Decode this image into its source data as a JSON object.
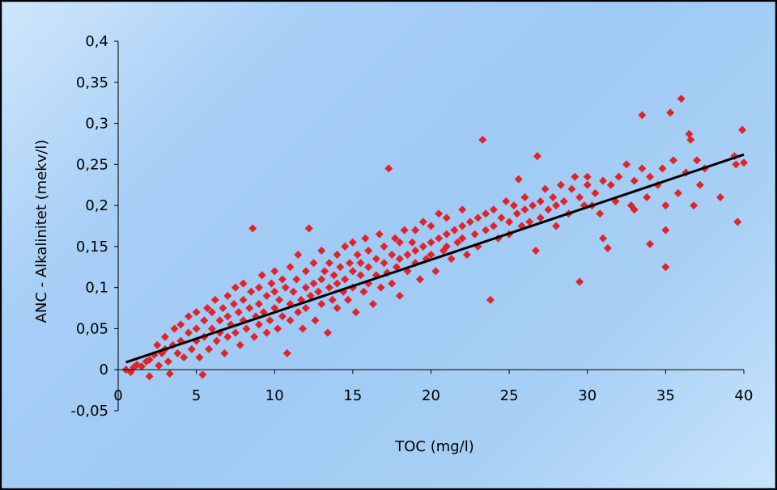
{
  "chart_data": {
    "type": "scatter",
    "title": "",
    "xlabel": "TOC (mg/l)",
    "ylabel": "ANC - Alkalinitet (mekv/l)",
    "xlim": [
      0,
      40
    ],
    "ylim": [
      -0.05,
      0.4
    ],
    "x_ticks": [
      0,
      5,
      10,
      15,
      20,
      25,
      30,
      35,
      40
    ],
    "x_tick_labels": [
      "0",
      "5",
      "10",
      "15",
      "20",
      "25",
      "30",
      "35",
      "40"
    ],
    "y_ticks": [
      -0.05,
      0,
      0.05,
      0.1,
      0.15,
      0.2,
      0.25,
      0.3,
      0.35,
      0.4
    ],
    "y_tick_labels": [
      "-0,05",
      "0",
      "0,05",
      "0,1",
      "0,15",
      "0,2",
      "0,25",
      "0,3",
      "0,35",
      "0,4"
    ],
    "grid": false,
    "legend": "none",
    "colors": {
      "points": "#e0242c",
      "trendline": "#000000",
      "axis": "#000000"
    },
    "series": [
      {
        "marker": "diamond",
        "points": [
          [
            0.5,
            0.0
          ],
          [
            0.8,
            -0.003
          ],
          [
            1.0,
            0.003
          ],
          [
            1.2,
            0.006
          ],
          [
            1.5,
            0.004
          ],
          [
            1.8,
            0.01
          ],
          [
            2.0,
            0.012
          ],
          [
            2.0,
            -0.008
          ],
          [
            2.3,
            0.018
          ],
          [
            2.5,
            0.03
          ],
          [
            2.6,
            0.005
          ],
          [
            2.8,
            0.02
          ],
          [
            3.0,
            0.025
          ],
          [
            3.0,
            0.04
          ],
          [
            3.2,
            0.01
          ],
          [
            3.3,
            -0.005
          ],
          [
            3.5,
            0.03
          ],
          [
            3.6,
            0.05
          ],
          [
            3.8,
            0.02
          ],
          [
            4.0,
            0.035
          ],
          [
            4.0,
            0.055
          ],
          [
            4.2,
            0.015
          ],
          [
            4.5,
            0.045
          ],
          [
            4.5,
            0.065
          ],
          [
            4.7,
            0.025
          ],
          [
            5.0,
            0.05
          ],
          [
            5.0,
            0.07
          ],
          [
            5.0,
            0.035
          ],
          [
            5.2,
            0.015
          ],
          [
            5.4,
            -0.006
          ],
          [
            5.5,
            0.06
          ],
          [
            5.5,
            0.04
          ],
          [
            5.7,
            0.075
          ],
          [
            5.8,
            0.025
          ],
          [
            6.0,
            0.05
          ],
          [
            6.0,
            0.07
          ],
          [
            6.2,
            0.085
          ],
          [
            6.3,
            0.035
          ],
          [
            6.5,
            0.06
          ],
          [
            6.5,
            0.045
          ],
          [
            6.7,
            0.075
          ],
          [
            6.8,
            0.02
          ],
          [
            7.0,
            0.065
          ],
          [
            7.0,
            0.09
          ],
          [
            7.0,
            0.04
          ],
          [
            7.2,
            0.055
          ],
          [
            7.4,
            0.08
          ],
          [
            7.5,
            0.1
          ],
          [
            7.5,
            0.045
          ],
          [
            7.7,
            0.07
          ],
          [
            7.8,
            0.03
          ],
          [
            8.0,
            0.06
          ],
          [
            8.0,
            0.085
          ],
          [
            8.0,
            0.105
          ],
          [
            8.2,
            0.05
          ],
          [
            8.4,
            0.075
          ],
          [
            8.5,
            0.095
          ],
          [
            8.6,
            0.172
          ],
          [
            8.7,
            0.04
          ],
          [
            8.8,
            0.065
          ],
          [
            9.0,
            0.08
          ],
          [
            9.0,
            0.1
          ],
          [
            9.0,
            0.055
          ],
          [
            9.2,
            0.115
          ],
          [
            9.3,
            0.07
          ],
          [
            9.5,
            0.09
          ],
          [
            9.5,
            0.045
          ],
          [
            9.7,
            0.06
          ],
          [
            9.8,
            0.105
          ],
          [
            10.0,
            0.075
          ],
          [
            10.0,
            0.095
          ],
          [
            10.0,
            0.12
          ],
          [
            10.2,
            0.05
          ],
          [
            10.3,
            0.085
          ],
          [
            10.5,
            0.065
          ],
          [
            10.5,
            0.11
          ],
          [
            10.7,
            0.1
          ],
          [
            10.8,
            0.02
          ],
          [
            11.0,
            0.08
          ],
          [
            11.0,
            0.125
          ],
          [
            11.0,
            0.06
          ],
          [
            11.2,
            0.095
          ],
          [
            11.4,
            0.11
          ],
          [
            11.5,
            0.07
          ],
          [
            11.5,
            0.14
          ],
          [
            11.7,
            0.085
          ],
          [
            11.8,
            0.05
          ],
          [
            12.0,
            0.1
          ],
          [
            12.0,
            0.12
          ],
          [
            12.0,
            0.075
          ],
          [
            12.2,
            0.172
          ],
          [
            12.3,
            0.09
          ],
          [
            12.5,
            0.105
          ],
          [
            12.5,
            0.13
          ],
          [
            12.6,
            0.06
          ],
          [
            12.8,
            0.095
          ],
          [
            13.0,
            0.11
          ],
          [
            13.0,
            0.08
          ],
          [
            13.0,
            0.145
          ],
          [
            13.2,
            0.12
          ],
          [
            13.4,
            0.045
          ],
          [
            13.5,
            0.1
          ],
          [
            13.5,
            0.13
          ],
          [
            13.7,
            0.085
          ],
          [
            13.8,
            0.115
          ],
          [
            14.0,
            0.105
          ],
          [
            14.0,
            0.14
          ],
          [
            14.0,
            0.075
          ],
          [
            14.2,
            0.125
          ],
          [
            14.4,
            0.095
          ],
          [
            14.5,
            0.15
          ],
          [
            14.5,
            0.11
          ],
          [
            14.7,
            0.085
          ],
          [
            14.8,
            0.13
          ],
          [
            15.0,
            0.12
          ],
          [
            15.0,
            0.1
          ],
          [
            15.0,
            0.155
          ],
          [
            15.2,
            0.07
          ],
          [
            15.3,
            0.14
          ],
          [
            15.5,
            0.115
          ],
          [
            15.5,
            0.13
          ],
          [
            15.7,
            0.095
          ],
          [
            15.8,
            0.16
          ],
          [
            16.0,
            0.125
          ],
          [
            16.0,
            0.105
          ],
          [
            16.0,
            0.145
          ],
          [
            16.3,
            0.08
          ],
          [
            16.5,
            0.135
          ],
          [
            16.5,
            0.115
          ],
          [
            16.7,
            0.165
          ],
          [
            16.8,
            0.1
          ],
          [
            17.0,
            0.13
          ],
          [
            17.0,
            0.15
          ],
          [
            17.2,
            0.118
          ],
          [
            17.3,
            0.245
          ],
          [
            17.5,
            0.14
          ],
          [
            17.5,
            0.105
          ],
          [
            17.7,
            0.16
          ],
          [
            17.8,
            0.125
          ],
          [
            18.0,
            0.135
          ],
          [
            18.0,
            0.155
          ],
          [
            18.0,
            0.09
          ],
          [
            18.3,
            0.17
          ],
          [
            18.5,
            0.14
          ],
          [
            18.5,
            0.12
          ],
          [
            18.8,
            0.155
          ],
          [
            19.0,
            0.145
          ],
          [
            19.0,
            0.13
          ],
          [
            19.0,
            0.17
          ],
          [
            19.3,
            0.11
          ],
          [
            19.5,
            0.15
          ],
          [
            19.5,
            0.18
          ],
          [
            19.7,
            0.135
          ],
          [
            20.0,
            0.155
          ],
          [
            20.0,
            0.14
          ],
          [
            20.0,
            0.175
          ],
          [
            20.3,
            0.12
          ],
          [
            20.5,
            0.16
          ],
          [
            20.5,
            0.19
          ],
          [
            20.8,
            0.145
          ],
          [
            21.0,
            0.165
          ],
          [
            21.0,
            0.15
          ],
          [
            21.0,
            0.185
          ],
          [
            21.3,
            0.135
          ],
          [
            21.5,
            0.17
          ],
          [
            21.7,
            0.155
          ],
          [
            22.0,
            0.175
          ],
          [
            22.0,
            0.16
          ],
          [
            22.0,
            0.195
          ],
          [
            22.3,
            0.14
          ],
          [
            22.5,
            0.18
          ],
          [
            22.8,
            0.165
          ],
          [
            23.0,
            0.185
          ],
          [
            23.0,
            0.15
          ],
          [
            23.3,
            0.28
          ],
          [
            23.5,
            0.17
          ],
          [
            23.5,
            0.19
          ],
          [
            23.8,
            0.085
          ],
          [
            24.0,
            0.175
          ],
          [
            24.0,
            0.195
          ],
          [
            24.3,
            0.16
          ],
          [
            24.5,
            0.185
          ],
          [
            24.8,
            0.205
          ],
          [
            25.0,
            0.18
          ],
          [
            25.0,
            0.165
          ],
          [
            25.3,
            0.2
          ],
          [
            25.5,
            0.19
          ],
          [
            25.6,
            0.232
          ],
          [
            25.8,
            0.175
          ],
          [
            26.0,
            0.195
          ],
          [
            26.0,
            0.21
          ],
          [
            26.3,
            0.18
          ],
          [
            26.5,
            0.2
          ],
          [
            26.7,
            0.145
          ],
          [
            26.8,
            0.26
          ],
          [
            27.0,
            0.205
          ],
          [
            27.0,
            0.185
          ],
          [
            27.3,
            0.22
          ],
          [
            27.5,
            0.195
          ],
          [
            27.8,
            0.21
          ],
          [
            28.0,
            0.2
          ],
          [
            28.0,
            0.175
          ],
          [
            28.3,
            0.225
          ],
          [
            28.5,
            0.205
          ],
          [
            28.8,
            0.19
          ],
          [
            29.0,
            0.22
          ],
          [
            29.2,
            0.235
          ],
          [
            29.5,
            0.107
          ],
          [
            29.5,
            0.21
          ],
          [
            29.8,
            0.2
          ],
          [
            30.0,
            0.225
          ],
          [
            30.0,
            0.235
          ],
          [
            30.3,
            0.2
          ],
          [
            30.5,
            0.215
          ],
          [
            30.8,
            0.19
          ],
          [
            31.0,
            0.23
          ],
          [
            31.0,
            0.16
          ],
          [
            31.3,
            0.148
          ],
          [
            31.5,
            0.225
          ],
          [
            31.8,
            0.205
          ],
          [
            32.0,
            0.235
          ],
          [
            32.5,
            0.25
          ],
          [
            32.8,
            0.2
          ],
          [
            33.0,
            0.23
          ],
          [
            33.0,
            0.195
          ],
          [
            33.5,
            0.31
          ],
          [
            33.5,
            0.245
          ],
          [
            33.8,
            0.21
          ],
          [
            34.0,
            0.153
          ],
          [
            34.0,
            0.235
          ],
          [
            34.5,
            0.225
          ],
          [
            34.8,
            0.245
          ],
          [
            35.0,
            0.17
          ],
          [
            35.0,
            0.125
          ],
          [
            35.0,
            0.2
          ],
          [
            35.3,
            0.313
          ],
          [
            35.5,
            0.255
          ],
          [
            35.8,
            0.215
          ],
          [
            36.0,
            0.33
          ],
          [
            36.3,
            0.24
          ],
          [
            36.5,
            0.287
          ],
          [
            36.6,
            0.28
          ],
          [
            36.8,
            0.2
          ],
          [
            37.0,
            0.255
          ],
          [
            37.2,
            0.225
          ],
          [
            37.5,
            0.245
          ],
          [
            38.5,
            0.21
          ],
          [
            39.4,
            0.26
          ],
          [
            39.5,
            0.25
          ],
          [
            39.6,
            0.18
          ],
          [
            39.9,
            0.292
          ],
          [
            40.0,
            0.252
          ]
        ]
      }
    ],
    "trendline": {
      "x": [
        0.5,
        40
      ],
      "y": [
        0.009,
        0.262
      ]
    }
  }
}
